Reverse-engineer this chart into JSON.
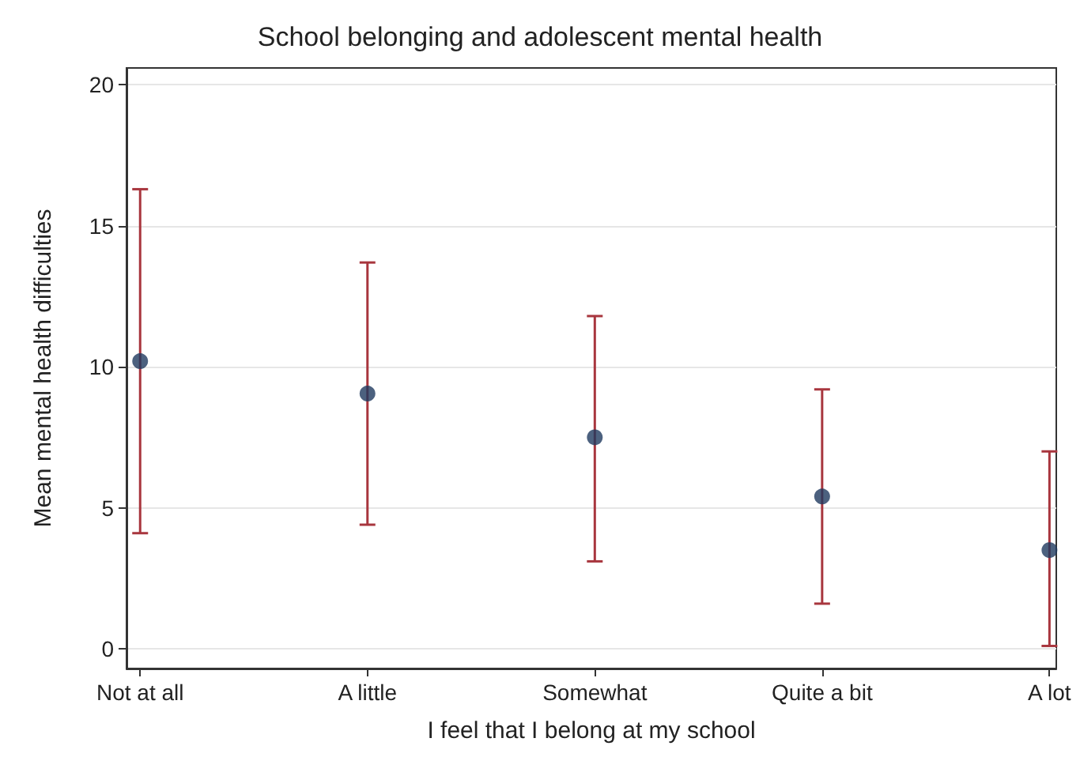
{
  "chart_data": {
    "type": "scatter",
    "title": "School belonging and adolescent mental health",
    "xlabel": "I feel that I belong at my school",
    "ylabel": "Mean mental health difficulties",
    "categories": [
      "Not at all",
      "A little",
      "Somewhat",
      "Quite a bit",
      "A lot"
    ],
    "series": [
      {
        "color": "#1f3a5f",
        "values": [
          10.2,
          9.05,
          7.5,
          5.4,
          3.5
        ],
        "errors": [
          [
            4.1,
            16.3
          ],
          [
            4.4,
            13.7
          ],
          [
            3.1,
            11.8
          ],
          [
            1.6,
            9.2
          ],
          [
            0.1,
            7.0
          ]
        ]
      }
    ],
    "ylim": [
      -0.7,
      20.6
    ],
    "yticks": [
      0,
      5,
      10,
      15,
      20
    ],
    "grid": "y",
    "marker": "circle"
  }
}
